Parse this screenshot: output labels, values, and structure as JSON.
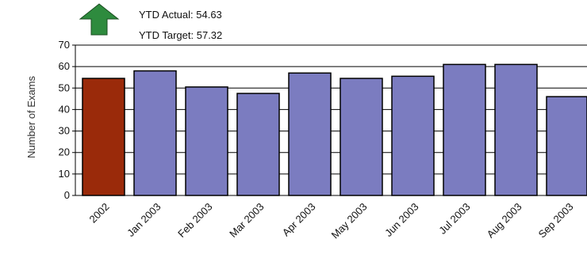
{
  "kpi": {
    "ytd_actual_label": "YTD Actual: 54.63",
    "ytd_target_label": "YTD Target: 57.32",
    "trend_icon": "arrow-up-icon",
    "trend_color": "#2e8b3e"
  },
  "chart_data": {
    "type": "bar",
    "ylabel": "Number of Exams",
    "ylim": [
      0,
      70
    ],
    "yticks": [
      0,
      10,
      20,
      30,
      40,
      50,
      60,
      70
    ],
    "grid": true,
    "categories": [
      "2002",
      "Jan 2003",
      "Feb 2003",
      "Mar 2003",
      "Apr 2003",
      "May 2003",
      "Jun 2003",
      "Jul 2003",
      "Aug 2003",
      "Sep 2003"
    ],
    "values": [
      54.5,
      58,
      50.5,
      47.5,
      57,
      54.5,
      55.5,
      61,
      61,
      46
    ],
    "colors": {
      "highlight": "#9a2a0a",
      "bar": "#7b7cc0",
      "outline": "#000000",
      "grid": "#000000"
    },
    "highlight_index": 0
  }
}
